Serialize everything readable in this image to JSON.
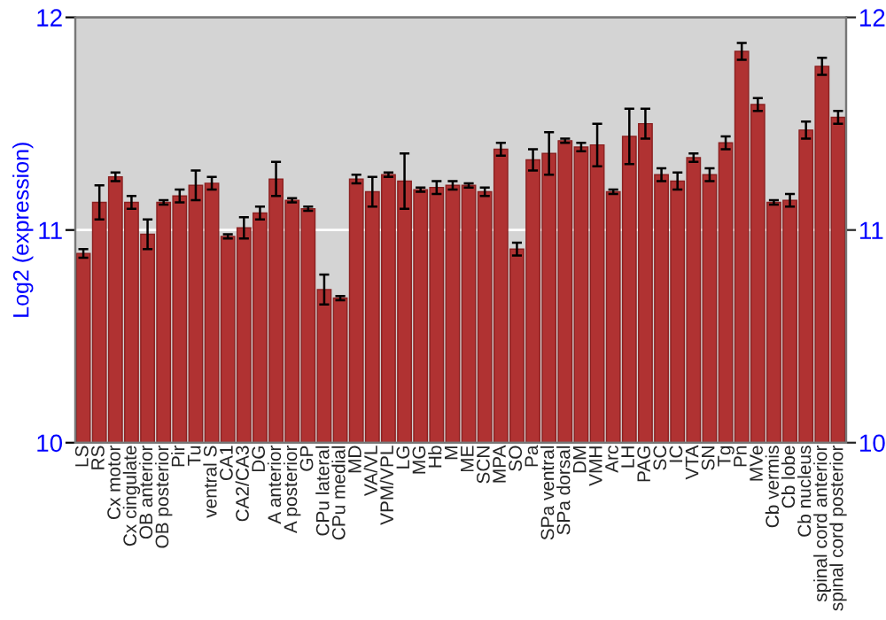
{
  "chart_data": {
    "type": "bar",
    "ylabel": "Log2 (expression)",
    "categories": [
      "LS",
      "RS",
      "Cx motor",
      "Cx cingulate",
      "OB anterior",
      "OB posterior",
      "Pir",
      "Tu",
      "ventral S",
      "CA1",
      "CA2/CA3",
      "DG",
      "A anterior",
      "A posterior",
      "GP",
      "CPu lateral",
      "CPu medial",
      "MD",
      "VA/VL",
      "VPM/VPL",
      "LG",
      "MG",
      "Hb",
      "M",
      "ME",
      "SCN",
      "MPA",
      "SO",
      "Pa",
      "SPa ventral",
      "SPa dorsal",
      "DM",
      "VMH",
      "Arc",
      "LH",
      "PAG",
      "SC",
      "IC",
      "VTA",
      "SN",
      "Tg",
      "Pn",
      "MVe",
      "Cb vermis",
      "Cb lobe",
      "Cb nucleus",
      "spinal cord anterior",
      "spinal cord posterior"
    ],
    "values": [
      10.89,
      11.13,
      11.25,
      11.13,
      10.98,
      11.13,
      11.16,
      11.21,
      11.22,
      10.97,
      11.01,
      11.08,
      11.24,
      11.14,
      11.1,
      10.72,
      10.68,
      11.24,
      11.18,
      11.26,
      11.23,
      11.19,
      11.2,
      11.21,
      11.21,
      11.18,
      11.38,
      10.91,
      11.33,
      11.36,
      11.42,
      11.39,
      11.4,
      11.18,
      11.44,
      11.5,
      11.26,
      11.23,
      11.34,
      11.26,
      11.41,
      11.84,
      11.59,
      11.13,
      11.14,
      11.47,
      11.77,
      11.53
    ],
    "errors": [
      0.02,
      0.08,
      0.02,
      0.03,
      0.07,
      0.01,
      0.03,
      0.07,
      0.03,
      0.01,
      0.05,
      0.03,
      0.08,
      0.01,
      0.01,
      0.07,
      0.01,
      0.02,
      0.07,
      0.01,
      0.13,
      0.01,
      0.03,
      0.02,
      0.01,
      0.02,
      0.03,
      0.03,
      0.05,
      0.1,
      0.01,
      0.02,
      0.1,
      0.01,
      0.13,
      0.07,
      0.03,
      0.04,
      0.02,
      0.03,
      0.03,
      0.04,
      0.03,
      0.01,
      0.03,
      0.04,
      0.04,
      0.03
    ],
    "color": "#b03232",
    "ylim": [
      10,
      12
    ],
    "yticks": [
      10,
      11,
      12
    ],
    "y2lim": [
      10,
      12
    ],
    "y2ticks": [
      10,
      11,
      12
    ],
    "grid": "y"
  }
}
